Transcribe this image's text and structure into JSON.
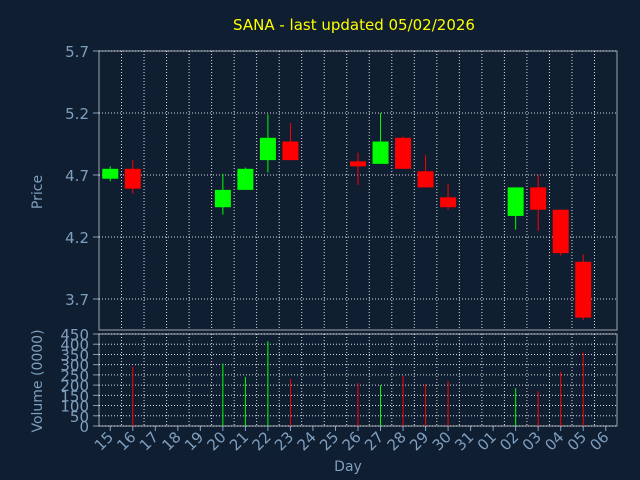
{
  "title": "SANA - last updated 05/02/2026",
  "colors": {
    "background": "#0f1e30",
    "title": "#ffff00",
    "text": "#7f9fbf",
    "grid": "#ffffff",
    "up": "#00ff00",
    "down": "#ff0000"
  },
  "chart_data": [
    {
      "type": "candlestick",
      "ylabel": "Price",
      "ylim": [
        3.45,
        5.7
      ],
      "yticks": [
        "5.7",
        "5.2",
        "4.7",
        "4.2",
        "3.7"
      ],
      "grid": true,
      "candles": [
        {
          "day": "15",
          "open": 4.67,
          "high": 4.77,
          "low": 4.65,
          "close": 4.75
        },
        {
          "day": "16",
          "open": 4.75,
          "high": 4.82,
          "low": 4.55,
          "close": 4.59
        },
        {
          "day": "20",
          "open": 4.44,
          "high": 4.71,
          "low": 4.38,
          "close": 4.58
        },
        {
          "day": "21",
          "open": 4.58,
          "high": 4.76,
          "low": 4.58,
          "close": 4.75
        },
        {
          "day": "22",
          "open": 4.82,
          "high": 5.19,
          "low": 4.72,
          "close": 5.0
        },
        {
          "day": "23",
          "open": 4.97,
          "high": 5.12,
          "low": 4.82,
          "close": 4.82
        },
        {
          "day": "26",
          "open": 4.81,
          "high": 4.88,
          "low": 4.62,
          "close": 4.77
        },
        {
          "day": "27",
          "open": 4.79,
          "high": 5.2,
          "low": 4.79,
          "close": 4.97
        },
        {
          "day": "28",
          "open": 5.0,
          "high": 5.01,
          "low": 4.75,
          "close": 4.75
        },
        {
          "day": "29",
          "open": 4.73,
          "high": 4.86,
          "low": 4.6,
          "close": 4.6
        },
        {
          "day": "30",
          "open": 4.52,
          "high": 4.63,
          "low": 4.42,
          "close": 4.44
        },
        {
          "day": "02",
          "open": 4.37,
          "high": 4.6,
          "low": 4.26,
          "close": 4.6
        },
        {
          "day": "03",
          "open": 4.6,
          "high": 4.7,
          "low": 4.25,
          "close": 4.42
        },
        {
          "day": "04",
          "open": 4.42,
          "high": 4.42,
          "low": 4.05,
          "close": 4.07
        },
        {
          "day": "05",
          "open": 4.0,
          "high": 4.06,
          "low": 3.53,
          "close": 3.55
        }
      ]
    },
    {
      "type": "bar",
      "ylabel": "Volume (0000)",
      "ylim": [
        0,
        450
      ],
      "yticks": [
        "450",
        "400",
        "350",
        "300",
        "250",
        "200",
        "150",
        "100",
        "50",
        "0"
      ],
      "xlabel": "Day",
      "categories": [
        "15",
        "16",
        "17",
        "18",
        "19",
        "20",
        "21",
        "22",
        "23",
        "24",
        "25",
        "26",
        "27",
        "28",
        "29",
        "30",
        "31",
        "01",
        "02",
        "03",
        "04",
        "05",
        "06"
      ],
      "volumes": [
        {
          "day": "16",
          "value": 290,
          "color": "down"
        },
        {
          "day": "20",
          "value": 305,
          "color": "up"
        },
        {
          "day": "21",
          "value": 240,
          "color": "up"
        },
        {
          "day": "22",
          "value": 415,
          "color": "up"
        },
        {
          "day": "23",
          "value": 230,
          "color": "down"
        },
        {
          "day": "26",
          "value": 210,
          "color": "down"
        },
        {
          "day": "27",
          "value": 200,
          "color": "up"
        },
        {
          "day": "28",
          "value": 245,
          "color": "down"
        },
        {
          "day": "29",
          "value": 205,
          "color": "down"
        },
        {
          "day": "30",
          "value": 220,
          "color": "down"
        },
        {
          "day": "02",
          "value": 185,
          "color": "up"
        },
        {
          "day": "03",
          "value": 170,
          "color": "down"
        },
        {
          "day": "04",
          "value": 265,
          "color": "down"
        },
        {
          "day": "05",
          "value": 360,
          "color": "down"
        }
      ]
    }
  ]
}
